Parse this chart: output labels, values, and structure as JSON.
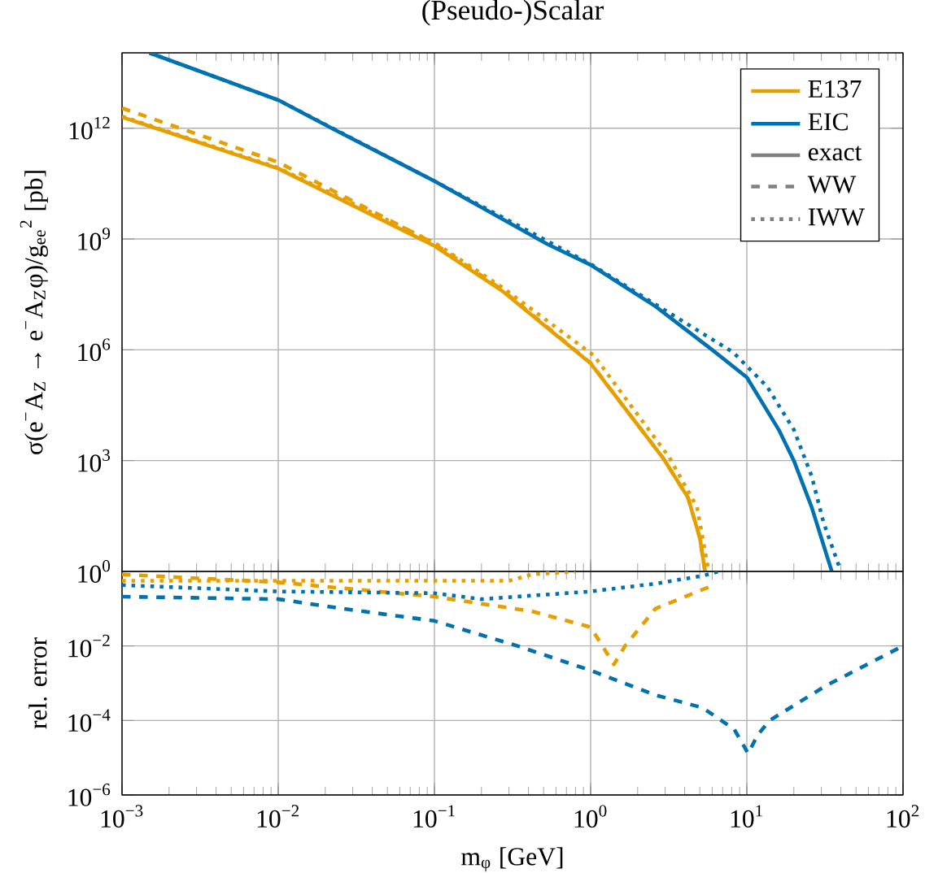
{
  "chart_data": [
    {
      "type": "line",
      "title": "(Pseudo-)Scalar",
      "ylabel": "σ(e$^{−}$A$_{Z}$ → e$^{−}$A$_{Z}$φ)/g$_{ee}$$^{2}$ [pb]",
      "log": "xy",
      "grid": true,
      "legend": "top right",
      "tick_labels": "y",
      "xlim": [
        0.001,
        100
      ],
      "xticks": [
        {
          "value": 0.001,
          "label": null
        },
        {
          "value": 0.01,
          "label": null
        },
        {
          "value": 0.1,
          "label": null
        },
        {
          "value": 1,
          "label": null
        },
        {
          "value": 10,
          "label": null
        },
        {
          "value": 100,
          "label": null
        }
      ],
      "ylim": [
        1,
        110000000000000.0
      ],
      "yticks": [
        {
          "value": 1,
          "label": null
        },
        {
          "value": 1000,
          "label": "10$^{3}$"
        },
        {
          "value": 1000000,
          "label": "10$^{6}$"
        },
        {
          "value": 1000000000,
          "label": "10$^{9}$"
        },
        {
          "value": 1000000000000.0,
          "label": "10$^{12}$"
        }
      ],
      "series": [
        {
          "name": "E137",
          "color": "#e69f00",
          "line_style": "solid",
          "x": [
            0.001,
            0.01,
            0.1,
            0.27,
            1,
            1.66,
            2.9,
            4.2,
            5.0,
            5.4
          ],
          "values": [
            2000000000000.0,
            81000000000.0,
            650000000.0,
            40000000.0,
            430000.0,
            26000.0,
            1200,
            100,
            8.1,
            1
          ]
        },
        {
          "name": "EIC",
          "color": "#0072b2",
          "line_style": "solid",
          "x": [
            0.0015,
            0.01,
            0.022,
            0.1,
            0.53,
            1,
            2.6,
            6,
            10,
            16,
            20,
            26,
            35
          ],
          "values": [
            110000000000000.0,
            5800000000000.0,
            1000000000000.0,
            37000000000.0,
            720000000.0,
            200000000.0,
            15000000.0,
            1000000.0,
            180000.0,
            6900,
            1000,
            55,
            1
          ]
        },
        {
          "color": "#e69f00",
          "line_style": "dashed",
          "x": [
            0.001,
            0.01,
            0.1,
            0.27,
            1,
            1.66,
            2.9,
            4.2,
            5.0,
            5.4
          ],
          "values": [
            3500000000000.0,
            120000000000.0,
            750000000.0,
            43000000.0,
            440000.0,
            26000.0,
            1200,
            100,
            8.1,
            1
          ]
        },
        {
          "color": "#e69f00",
          "line_style": "dotted",
          "x": [
            0.001,
            0.01,
            0.1,
            0.27,
            1.05,
            1.8,
            3.2,
            4.8,
            5.7
          ],
          "values": [
            2100000000000.0,
            85000000000.0,
            800000000.0,
            50000000.0,
            700000.0,
            32000.0,
            1200,
            55,
            1
          ]
        },
        {
          "color": "#0072b2",
          "line_style": "dotted",
          "x": [
            0.0015,
            0.01,
            0.1,
            1,
            2.6,
            8.2,
            13.5,
            20,
            26,
            31,
            40
          ],
          "values": [
            110000000000000.0,
            5800000000000.0,
            37000000000.0,
            210000000.0,
            17000000.0,
            850000.0,
            100000.0,
            6900,
            380,
            21,
            1
          ]
        },
        {
          "name": "exact",
          "color": "#808080",
          "line_style": "solid"
        },
        {
          "name": "WW",
          "color": "#808080",
          "line_style": "dashed"
        },
        {
          "name": "IWW",
          "color": "#808080",
          "line_style": "dotted"
        }
      ]
    },
    {
      "type": "line",
      "xlabel": "m$_{φ}$ [GeV]",
      "ylabel": "rel. error",
      "log": "xy",
      "grid": true,
      "xlim": [
        0.001,
        100
      ],
      "xticks": [
        {
          "value": 0.001,
          "label": "10$^{−3}$"
        },
        {
          "value": 0.01,
          "label": "10$^{−2}$"
        },
        {
          "value": 0.1,
          "label": "10$^{−1}$"
        },
        {
          "value": 1,
          "label": "10$^{0}$"
        },
        {
          "value": 10,
          "label": "10$^{1}$"
        },
        {
          "value": 100,
          "label": "10$^{2}$"
        }
      ],
      "ylim": [
        1e-06,
        1
      ],
      "yticks": [
        {
          "value": 1e-06,
          "label": "10$^{−6}$"
        },
        {
          "value": 0.0001,
          "label": "10$^{−4}$"
        },
        {
          "value": 0.01,
          "label": "10$^{−2}$"
        },
        {
          "value": 1,
          "label": "10$^{0}$"
        }
      ],
      "series": [
        {
          "color": "#e69f00",
          "line_style": "dashed",
          "x": [
            0.001,
            0.01,
            0.1,
            0.42,
            1,
            1.41,
            1.66,
            2.6,
            5.8
          ],
          "values": [
            0.83,
            0.51,
            0.21,
            0.085,
            0.032,
            0.0032,
            0.01,
            0.1,
            0.39
          ]
        },
        {
          "color": "#e69f00",
          "line_style": "dotted",
          "x": [
            0.001,
            0.3,
            0.42,
            0.8
          ],
          "values": [
            0.56,
            0.56,
            0.83,
            1
          ]
        },
        {
          "color": "#0072b2",
          "line_style": "dashed",
          "x": [
            0.001,
            0.01,
            0.026,
            0.1,
            0.34,
            1,
            2.6,
            5.2,
            8.3,
            10.2,
            11.7,
            14,
            32,
            100
          ],
          "values": [
            0.21,
            0.18,
            0.1,
            0.047,
            0.01,
            0.0022,
            0.00048,
            0.00022,
            5.8e-05,
            1.3e-05,
            4e-05,
            0.0001,
            0.00085,
            0.01
          ]
        },
        {
          "color": "#0072b2",
          "line_style": "dotted",
          "x": [
            0.001,
            0.01,
            0.1,
            0.2,
            1,
            2.6,
            5.2,
            6.6
          ],
          "values": [
            0.43,
            0.29,
            0.26,
            0.18,
            0.29,
            0.47,
            0.76,
            1
          ]
        }
      ]
    }
  ]
}
